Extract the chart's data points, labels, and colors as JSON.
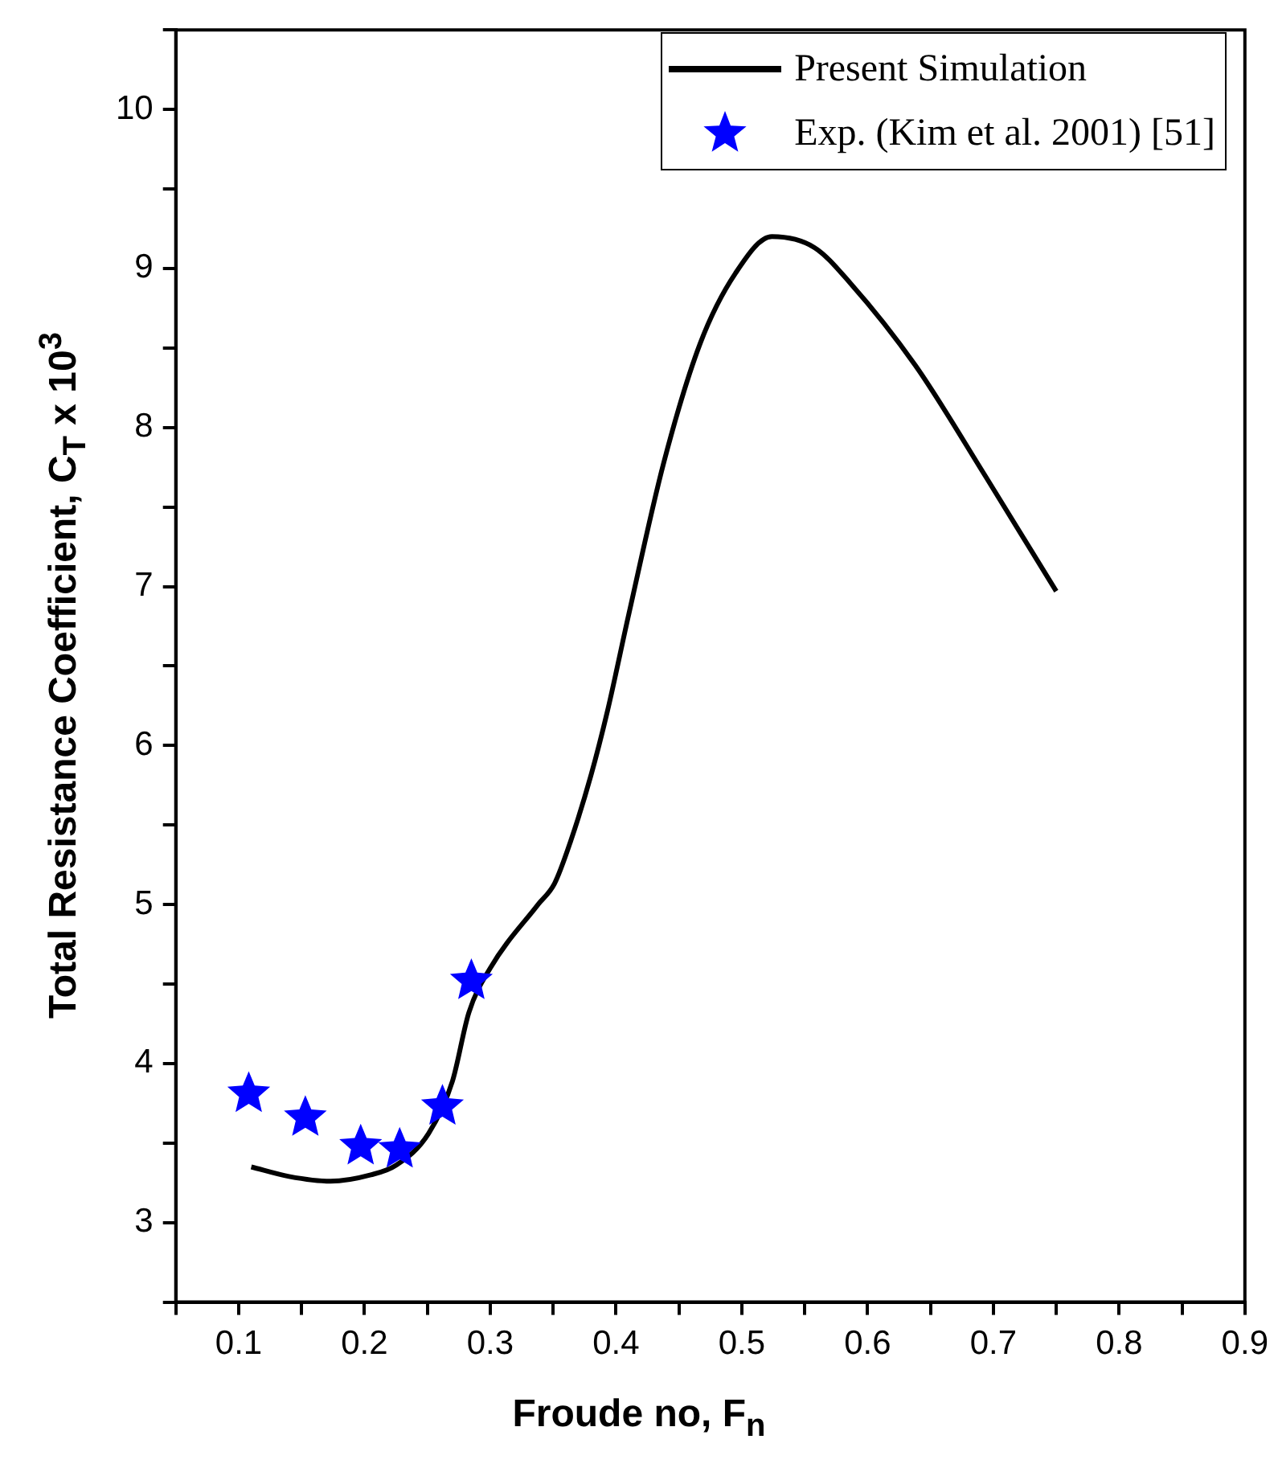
{
  "chart_data": {
    "type": "line",
    "xlabel": "Froude no, F$_{n}$",
    "ylabel": "Total Resistance Coefficient, C$_{T}$ x 10$^{3}$",
    "xlim": [
      0.05,
      0.9
    ],
    "xticks": [
      {
        "value": 0.05,
        "label": null
      },
      0.1,
      {
        "value": 0.15,
        "label": null
      },
      0.2,
      {
        "value": 0.25,
        "label": null
      },
      0.3,
      {
        "value": 0.35,
        "label": null
      },
      0.4,
      {
        "value": 0.45,
        "label": null
      },
      0.5,
      {
        "value": 0.55,
        "label": null
      },
      0.6,
      {
        "value": 0.65,
        "label": null
      },
      0.7,
      {
        "value": 0.75,
        "label": null
      },
      0.8,
      {
        "value": 0.85,
        "label": null
      },
      0.9
    ],
    "ylim": [
      2.5,
      10.5
    ],
    "yticks": [
      {
        "value": 2.5,
        "label": null
      },
      3,
      {
        "value": 3.5,
        "label": null
      },
      4,
      {
        "value": 4.5,
        "label": null
      },
      5,
      {
        "value": 5.5,
        "label": null
      },
      6,
      {
        "value": 6.5,
        "label": null
      },
      7,
      {
        "value": 7.5,
        "label": null
      },
      8,
      {
        "value": 8.5,
        "label": null
      },
      9,
      {
        "value": 9.5,
        "label": null
      },
      10,
      {
        "value": 10.5,
        "label": null
      }
    ],
    "grid": false,
    "legend": "top right",
    "series": [
      {
        "name": "Present Simulation",
        "color": "#000000",
        "marker": "none",
        "line_style": "solid",
        "x": [
          0.11,
          0.14,
          0.173,
          0.205,
          0.225,
          0.251,
          0.27,
          0.283,
          0.3,
          0.338,
          0.351,
          0.364,
          0.38,
          0.393,
          0.41,
          0.438,
          0.467,
          0.495,
          0.524,
          0.558,
          0.586,
          0.638,
          0.694,
          0.75
        ],
        "values": [
          3.35,
          3.29,
          3.26,
          3.3,
          3.36,
          3.56,
          3.89,
          4.32,
          4.6,
          5.0,
          5.13,
          5.4,
          5.81,
          6.21,
          6.82,
          7.78,
          8.53,
          8.97,
          9.2,
          9.13,
          8.91,
          8.39,
          7.69,
          6.97
        ]
      },
      {
        "name": "Exp. (Kim et al. 2001) [51]",
        "type": "scatter",
        "color": "#0000ff",
        "marker": "star",
        "x": [
          0.108,
          0.153,
          0.197,
          0.228,
          0.262,
          0.285
        ],
        "values": [
          3.81,
          3.66,
          3.48,
          3.46,
          3.73,
          4.52
        ]
      }
    ]
  }
}
